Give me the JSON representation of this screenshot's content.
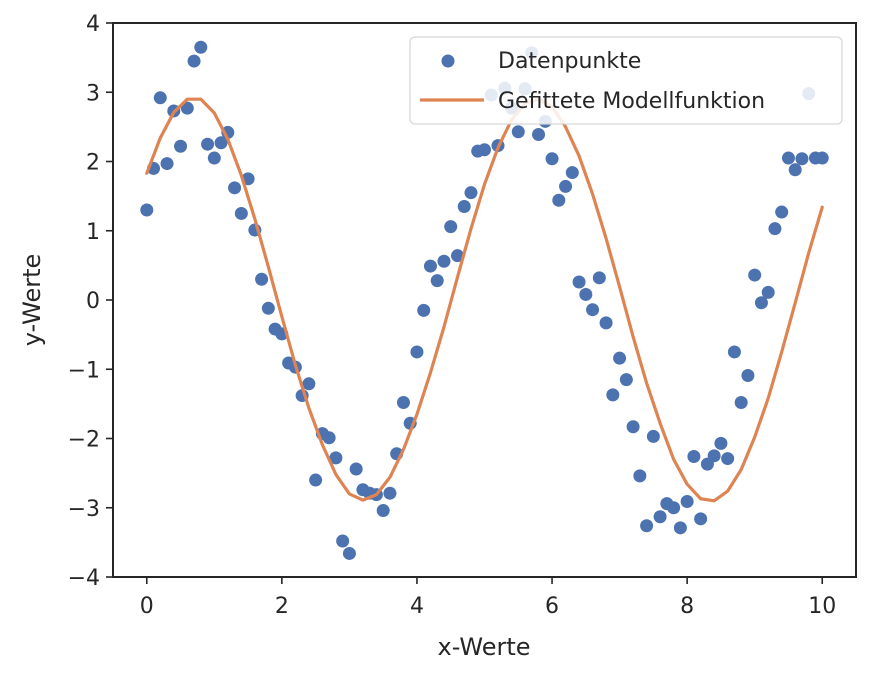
{
  "chart_data": {
    "type": "scatter",
    "xlabel": "x-Werte",
    "ylabel": "y-Werte",
    "xlim": [
      -0.5,
      10.5
    ],
    "ylim": [
      -4,
      4
    ],
    "xticks": [
      0,
      2,
      4,
      6,
      8,
      10
    ],
    "yticks": [
      -4,
      -3,
      -2,
      -1,
      0,
      1,
      2,
      3,
      4
    ],
    "ytick_labels": [
      "−4",
      "−3",
      "−2",
      "−1",
      "0",
      "1",
      "2",
      "3",
      "4"
    ],
    "grid": false,
    "legend_position": "upper-right",
    "colors": {
      "points": "#4c72b0",
      "fit": "#dd8452",
      "axis": "#262626"
    },
    "series": [
      {
        "name": "Datenpunkte",
        "type": "scatter",
        "x": [
          0.0,
          0.1,
          0.2,
          0.3,
          0.4,
          0.5,
          0.6,
          0.7,
          0.8,
          0.9,
          1.0,
          1.1,
          1.2,
          1.3,
          1.4,
          1.5,
          1.6,
          1.7,
          1.8,
          1.9,
          2.0,
          2.1,
          2.2,
          2.3,
          2.4,
          2.5,
          2.6,
          2.7,
          2.8,
          2.9,
          3.0,
          3.1,
          3.2,
          3.3,
          3.4,
          3.5,
          3.6,
          3.7,
          3.8,
          3.9,
          4.0,
          4.1,
          4.2,
          4.3,
          4.4,
          4.5,
          4.6,
          4.7,
          4.8,
          4.9,
          5.0,
          5.1,
          5.2,
          5.3,
          5.4,
          5.5,
          5.6,
          5.7,
          5.8,
          5.9,
          6.0,
          6.1,
          6.2,
          6.3,
          6.4,
          6.5,
          6.6,
          6.7,
          6.8,
          6.9,
          7.0,
          7.1,
          7.2,
          7.3,
          7.4,
          7.5,
          7.6,
          7.7,
          7.8,
          7.9,
          8.0,
          8.1,
          8.2,
          8.3,
          8.4,
          8.5,
          8.6,
          8.7,
          8.8,
          8.9,
          9.0,
          9.1,
          9.2,
          9.3,
          9.4,
          9.5,
          9.6,
          9.7,
          9.8,
          9.9,
          10.0
        ],
        "y": [
          1.3,
          1.9,
          2.92,
          1.97,
          2.73,
          2.22,
          2.77,
          3.45,
          3.65,
          2.25,
          2.05,
          2.27,
          2.42,
          1.62,
          1.25,
          1.75,
          1.01,
          0.3,
          -0.12,
          -0.42,
          -0.49,
          -0.91,
          -0.97,
          -1.38,
          -1.21,
          -2.6,
          -1.93,
          -1.99,
          -2.28,
          -3.48,
          -3.66,
          -2.44,
          -2.74,
          -2.79,
          -2.81,
          -3.04,
          -2.79,
          -2.22,
          -1.48,
          -1.78,
          -0.75,
          -0.15,
          0.49,
          0.28,
          0.56,
          1.06,
          0.64,
          1.35,
          1.55,
          2.15,
          2.17,
          2.96,
          2.23,
          3.06,
          2.77,
          2.43,
          3.05,
          3.57,
          2.39,
          2.58,
          2.04,
          1.44,
          1.64,
          1.84,
          0.26,
          0.08,
          -0.14,
          0.32,
          -0.33,
          -1.37,
          -0.84,
          -1.15,
          -1.83,
          -2.54,
          -3.26,
          -1.97,
          -3.13,
          -2.94,
          -3.0,
          -3.29,
          -2.91,
          -2.26,
          -3.16,
          -2.37,
          -2.25,
          -2.07,
          -2.29,
          -0.75,
          -1.48,
          -1.09,
          0.36,
          -0.04,
          0.11,
          1.03,
          1.27,
          2.05,
          1.88,
          2.04,
          2.98,
          2.05,
          2.05
        ]
      },
      {
        "name": "Gefittete Modellfunktion",
        "type": "line",
        "x": [
          0.0,
          0.2,
          0.4,
          0.6,
          0.8,
          1.0,
          1.2,
          1.4,
          1.6,
          1.8,
          2.0,
          2.2,
          2.4,
          2.6,
          2.8,
          3.0,
          3.2,
          3.4,
          3.6,
          3.8,
          4.0,
          4.2,
          4.4,
          4.6,
          4.8,
          5.0,
          5.2,
          5.4,
          5.6,
          5.8,
          6.0,
          6.2,
          6.4,
          6.6,
          6.8,
          7.0,
          7.2,
          7.4,
          7.6,
          7.8,
          8.0,
          8.2,
          8.4,
          8.6,
          8.8,
          9.0,
          9.2,
          9.4,
          9.6,
          9.8,
          10.0
        ],
        "y": [
          1.83,
          2.34,
          2.71,
          2.9,
          2.9,
          2.7,
          2.32,
          1.8,
          1.17,
          0.48,
          -0.24,
          -0.94,
          -1.56,
          -2.09,
          -2.52,
          -2.8,
          -2.89,
          -2.81,
          -2.56,
          -2.16,
          -1.65,
          -1.05,
          -0.39,
          0.33,
          1.03,
          1.67,
          2.2,
          2.6,
          2.84,
          2.9,
          2.79,
          2.5,
          2.08,
          1.53,
          0.89,
          0.19,
          -0.53,
          -1.2,
          -1.78,
          -2.3,
          -2.66,
          -2.87,
          -2.9,
          -2.76,
          -2.45,
          -1.98,
          -1.42,
          -0.75,
          -0.04,
          0.68,
          1.34
        ]
      }
    ]
  }
}
